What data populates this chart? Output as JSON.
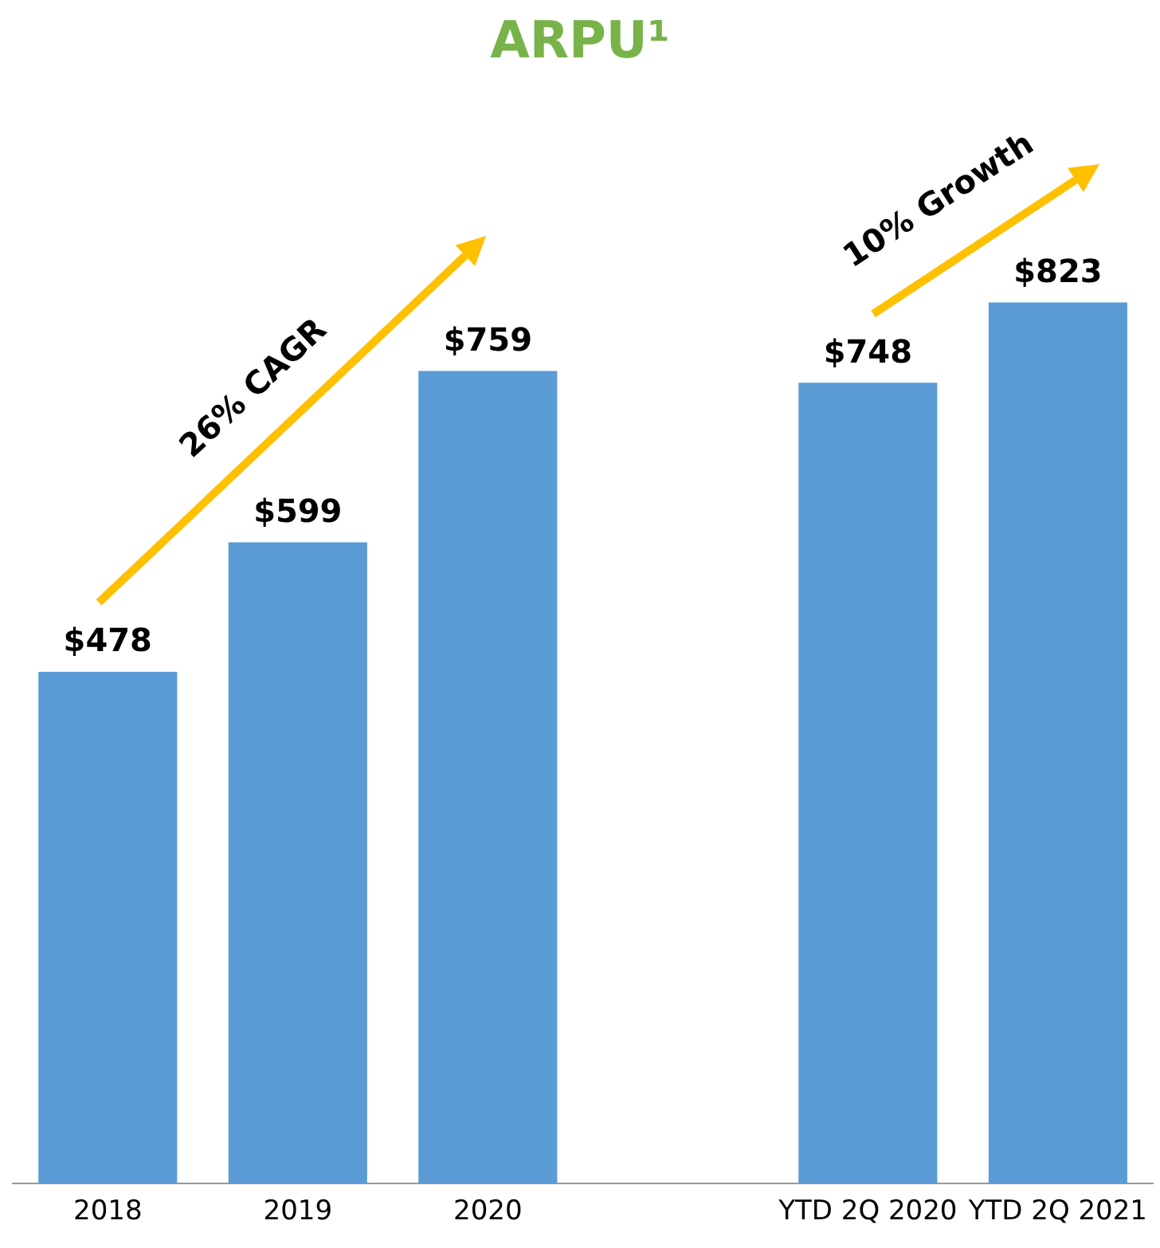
{
  "chart_data": {
    "type": "bar",
    "title": "ARPU¹",
    "categories": [
      "2018",
      "2019",
      "2020",
      null,
      "YTD 2Q 2020",
      "YTD 2Q 2021"
    ],
    "values": [
      478,
      599,
      759,
      null,
      748,
      823
    ],
    "value_labels": [
      "$478",
      "$599",
      "$759",
      null,
      "$748",
      "$823"
    ],
    "color": "#5b9bd5",
    "annotations": [
      "26% CAGR",
      "10% Growth"
    ],
    "grid": false,
    "legend": false
  }
}
